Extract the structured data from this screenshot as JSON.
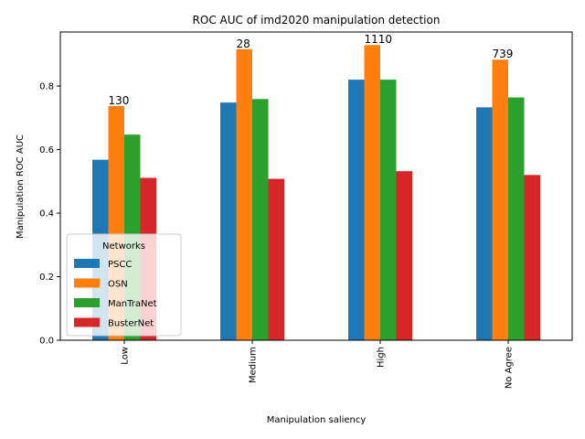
{
  "chart_data": {
    "type": "bar",
    "title": "ROC AUC of imd2020 manipulation detection",
    "xlabel": "Manipulation saliency",
    "ylabel": "Manipulation ROC AUC",
    "categories": [
      "Low",
      "Medium",
      "High",
      "No Agree"
    ],
    "ylim": [
      0,
      0.97
    ],
    "yticks": [
      "0.0",
      "0.2",
      "0.4",
      "0.6",
      "0.8"
    ],
    "series": [
      {
        "name": "PSCC",
        "color": "#1f77b4",
        "values": [
          0.568,
          0.748,
          0.82,
          0.733
        ]
      },
      {
        "name": "OSN",
        "color": "#ff7f0e",
        "values": [
          0.737,
          0.916,
          0.929,
          0.883
        ]
      },
      {
        "name": "ManTraNet",
        "color": "#2ca02c",
        "values": [
          0.647,
          0.759,
          0.82,
          0.764
        ]
      },
      {
        "name": "BusterNet",
        "color": "#d62728",
        "values": [
          0.511,
          0.508,
          0.532,
          0.52
        ]
      }
    ],
    "annotations": [
      {
        "category": "Low",
        "text": "130",
        "y": 0.737
      },
      {
        "category": "Medium",
        "text": "28",
        "y": 0.916
      },
      {
        "category": "High",
        "text": "1110",
        "y": 0.929
      },
      {
        "category": "No Agree",
        "text": "739",
        "y": 0.883
      }
    ],
    "legend": {
      "title": "Networks",
      "placement": "lower-left"
    },
    "grid": false
  }
}
